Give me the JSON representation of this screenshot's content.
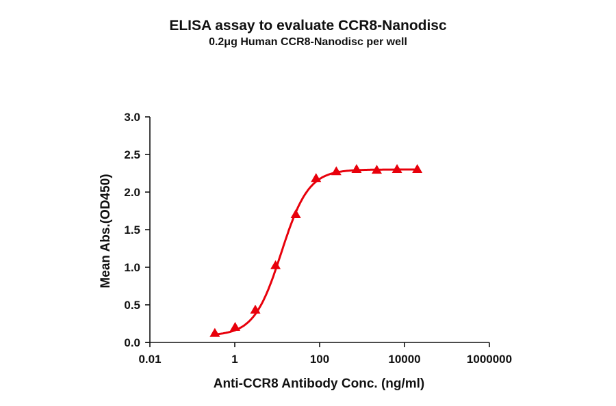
{
  "chart_data": {
    "type": "line",
    "title": "ELISA assay to evaluate CCR8-Nanodisc",
    "subtitle": "0.2μg Human CCR8-Nanodisc per well",
    "xlabel": "Anti-CCR8 Antibody Conc. (ng/ml)",
    "ylabel": "Mean Abs.(OD450)",
    "xscale": "log",
    "xlim": [
      0.01,
      1000000
    ],
    "ylim": [
      0,
      3.0
    ],
    "x_ticks": [
      "0.01",
      "1",
      "100",
      "10000",
      "1000000"
    ],
    "y_ticks": [
      "0.0",
      "0.5",
      "1.0",
      "1.5",
      "2.0",
      "2.5",
      "3.0"
    ],
    "grid": false,
    "legend": null,
    "series": [
      {
        "name": "CCR8-Nanodisc",
        "color": "#e8000b",
        "marker": "triangle",
        "fit": "4PL sigmoid",
        "x": [
          0.339,
          1.02,
          3.05,
          9.14,
          27.4,
          82.3,
          247,
          741,
          2222,
          6667,
          20000
        ],
        "values": [
          0.12,
          0.2,
          0.43,
          1.02,
          1.7,
          2.18,
          2.27,
          2.3,
          2.29,
          2.3,
          2.3
        ]
      }
    ]
  }
}
